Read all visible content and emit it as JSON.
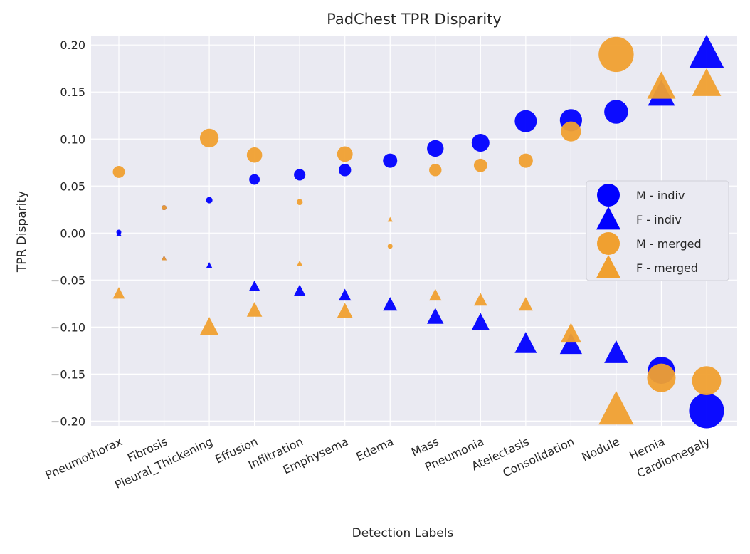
{
  "chart_data": {
    "type": "scatter",
    "title": "PadChest TPR Disparity",
    "xlabel": "Detection Labels",
    "ylabel": "TPR Disparity",
    "ylim": [
      -0.205,
      0.21
    ],
    "yticks": [
      0.2,
      0.15,
      0.1,
      0.05,
      0.0,
      -0.05,
      -0.1,
      -0.15,
      -0.2
    ],
    "ytick_labels": [
      "0.20",
      "0.15",
      "0.10",
      "0.05",
      "0.00",
      "−0.05",
      "−0.10",
      "−0.15",
      "−0.20"
    ],
    "grid": true,
    "legend_position": "center-right",
    "categories": [
      "Pneumothorax",
      "Fibrosis",
      "Pleural_Thickening",
      "Effusion",
      "Infiltration",
      "Emphysema",
      "Edema",
      "Mass",
      "Pneumonia",
      "Atelectasis",
      "Consolidation",
      "Nodule",
      "Hernia",
      "Cardiomegaly"
    ],
    "marker_size_encoding": "marker area proportional to absolute disparity",
    "series": [
      {
        "name": "M - indiv",
        "marker": "circle",
        "color": "#0000ff",
        "values": [
          0.001,
          0.027,
          0.035,
          0.057,
          0.062,
          0.067,
          0.077,
          0.09,
          0.096,
          0.119,
          0.12,
          0.129,
          -0.146,
          -0.189
        ]
      },
      {
        "name": "F - indiv",
        "marker": "triangle",
        "color": "#0000ff",
        "values": [
          -0.001,
          -0.027,
          -0.035,
          -0.057,
          -0.062,
          -0.067,
          -0.077,
          -0.09,
          -0.096,
          -0.119,
          -0.12,
          -0.129,
          0.146,
          0.189
        ]
      },
      {
        "name": "M - merged",
        "marker": "circle",
        "color": "#f0a030",
        "values": [
          0.065,
          0.027,
          0.101,
          0.083,
          0.033,
          0.084,
          -0.014,
          0.067,
          0.072,
          0.077,
          0.108,
          0.19,
          -0.154,
          -0.157
        ]
      },
      {
        "name": "F - merged",
        "marker": "triangle",
        "color": "#f0a030",
        "values": [
          -0.065,
          -0.027,
          -0.101,
          -0.083,
          -0.033,
          -0.084,
          0.014,
          -0.067,
          -0.072,
          -0.077,
          -0.108,
          -0.19,
          0.154,
          0.157
        ]
      }
    ]
  }
}
